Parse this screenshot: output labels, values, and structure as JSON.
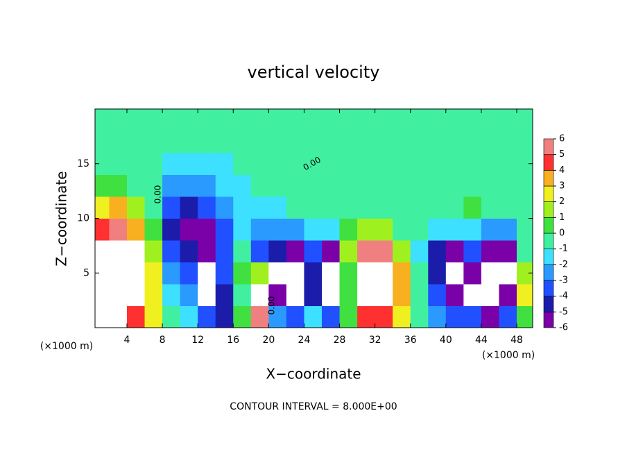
{
  "chart_data": {
    "type": "contour",
    "title": "vertical velocity",
    "x_label": "X−coordinate",
    "y_label": "Z−coordinate",
    "x_unit_left": "(×1000 m)",
    "x_unit_right": "(×1000 m)",
    "footer": "CONTOUR INTERVAL = 8.000E+00",
    "contour_label": "0.00",
    "xlim": [
      0.4,
      49.8
    ],
    "ylim": [
      0,
      20
    ],
    "xticks": [
      4,
      8,
      12,
      16,
      20,
      24,
      28,
      32,
      36,
      40,
      44,
      48
    ],
    "yticks": [
      5,
      10,
      15
    ],
    "x": [
      1,
      3,
      5,
      7,
      9,
      11,
      13,
      15,
      17,
      19,
      21,
      23,
      25,
      27,
      29,
      31,
      33,
      35,
      37,
      39,
      41,
      43,
      45,
      47,
      49
    ],
    "y": [
      1,
      3,
      5,
      7,
      9,
      11,
      13,
      15,
      17,
      19
    ],
    "z": [
      [
        7,
        7,
        5,
        3,
        0,
        -1,
        -3,
        -4,
        1,
        6,
        -2,
        -3,
        -1,
        -3,
        1,
        5,
        5,
        3,
        0,
        -2,
        -3,
        -3,
        -5,
        -3,
        1
      ],
      [
        8,
        8,
        8,
        3,
        -1,
        -2,
        -7,
        -4,
        0,
        7,
        -6,
        -7,
        -4,
        -7,
        1,
        8,
        8,
        4,
        0,
        -3,
        -6,
        -7,
        -7,
        -5,
        3
      ],
      [
        8,
        9,
        8,
        3,
        -2,
        -3,
        -7,
        -3,
        1,
        2,
        -7,
        -7,
        -4,
        -7,
        1,
        8,
        9,
        4,
        0,
        -4,
        -7,
        -5,
        -7,
        -7,
        2
      ],
      [
        7,
        9,
        7,
        2,
        -3,
        -4,
        -6,
        -3,
        0,
        -3,
        -4,
        -5,
        -3,
        -5,
        2,
        6,
        6,
        2,
        -1,
        -4,
        -5,
        -3,
        -5,
        -5,
        0
      ],
      [
        5,
        6,
        4,
        1,
        -4,
        -5,
        -5,
        -3,
        -1,
        -2,
        -2,
        -2,
        -1,
        -1,
        1,
        2,
        2,
        0,
        0,
        -1,
        -1,
        -1,
        -2,
        -2,
        0
      ],
      [
        3,
        4,
        2,
        0,
        -3,
        -4,
        -3,
        -2,
        -1,
        -1,
        -1,
        0,
        0,
        0,
        0,
        0,
        0,
        0,
        0,
        0,
        0,
        1,
        0,
        0,
        0
      ],
      [
        1,
        1,
        0,
        0,
        -2,
        -2,
        -2,
        -1,
        -1,
        0,
        0,
        0,
        0,
        0,
        0,
        0,
        0,
        0,
        0,
        0,
        0,
        0,
        0,
        0,
        0
      ],
      [
        0,
        0,
        0,
        0,
        -1,
        -1,
        -1,
        -1,
        0,
        0,
        0,
        0,
        0,
        0,
        0,
        0,
        0,
        0,
        0,
        0,
        0,
        0,
        0,
        0,
        0
      ],
      [
        0,
        0,
        0,
        0,
        0,
        0,
        0,
        0,
        0,
        0,
        0,
        0,
        0,
        0,
        0,
        0,
        0,
        0,
        0,
        0,
        0,
        0,
        0,
        0,
        0
      ],
      [
        0,
        0,
        0,
        0,
        0,
        0,
        0,
        0,
        0,
        0,
        0,
        0,
        0,
        0,
        0,
        0,
        0,
        0,
        0,
        0,
        0,
        0,
        0,
        0,
        0
      ]
    ],
    "colorbar_levels": [
      -6,
      -5,
      -4,
      -3,
      -2,
      -1,
      0,
      1,
      2,
      3,
      4,
      5,
      6
    ],
    "colorbar_colors": [
      "#7a00a8",
      "#1c1caa",
      "#2050ff",
      "#2a9aff",
      "#3de0ff",
      "#40f0a0",
      "#40e040",
      "#a0f020",
      "#f0f020",
      "#f8b020",
      "#ff3030",
      "#f08080"
    ],
    "extend_color": "#ffffff"
  }
}
